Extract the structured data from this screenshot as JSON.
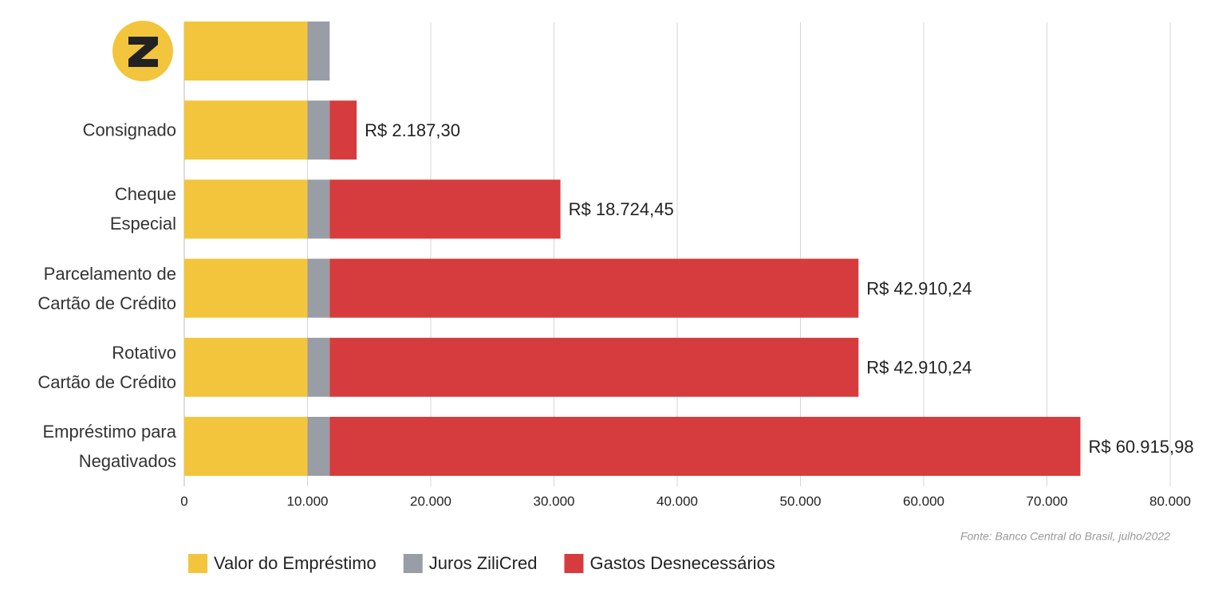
{
  "chart_data": {
    "type": "stacked-bar-horizontal",
    "categories": [
      null,
      "Consignado",
      "Cheque\nEspecial",
      "Parcelamento de\nCartão de Crédito",
      "Rotativo\nCartão de Crédito",
      "Empréstimo para\nNegativados"
    ],
    "series": [
      {
        "name": "Valor do Empréstimo",
        "color": "#f2c53d",
        "values": [
          10000,
          10000,
          10000,
          10000,
          10000,
          10000
        ]
      },
      {
        "name": "Juros ZiliCred",
        "color": "#999da5",
        "values": [
          1800,
          1800,
          1800,
          1800,
          1800,
          1800
        ]
      },
      {
        "name": "Gastos Desnecessários",
        "color": "#d63c3d",
        "values": [
          null,
          2187.3,
          18724.45,
          42910.24,
          42910.24,
          60915.98
        ],
        "value_labels": [
          null,
          "R$ 2.187,30",
          "R$ 18.724,45",
          "R$ 42.910,24",
          "R$ 42.910,24",
          "R$ 60.915,98"
        ]
      }
    ],
    "xlim": [
      0,
      80000
    ],
    "xticks": [
      0,
      {
        "value": 10000,
        "label": "10.000"
      },
      {
        "value": 20000,
        "label": "20.000"
      },
      {
        "value": 30000,
        "label": "30.000"
      },
      {
        "value": 40000,
        "label": "40.000"
      },
      {
        "value": 50000,
        "label": "50.000"
      },
      {
        "value": 60000,
        "label": "60.000"
      },
      {
        "value": 70000,
        "label": "70.000"
      },
      {
        "value": 80000,
        "label": "80.000"
      }
    ],
    "grid": true,
    "legend": "bottom-left",
    "source": "Fonte: Banco Central do Brasil, julho/2022"
  }
}
